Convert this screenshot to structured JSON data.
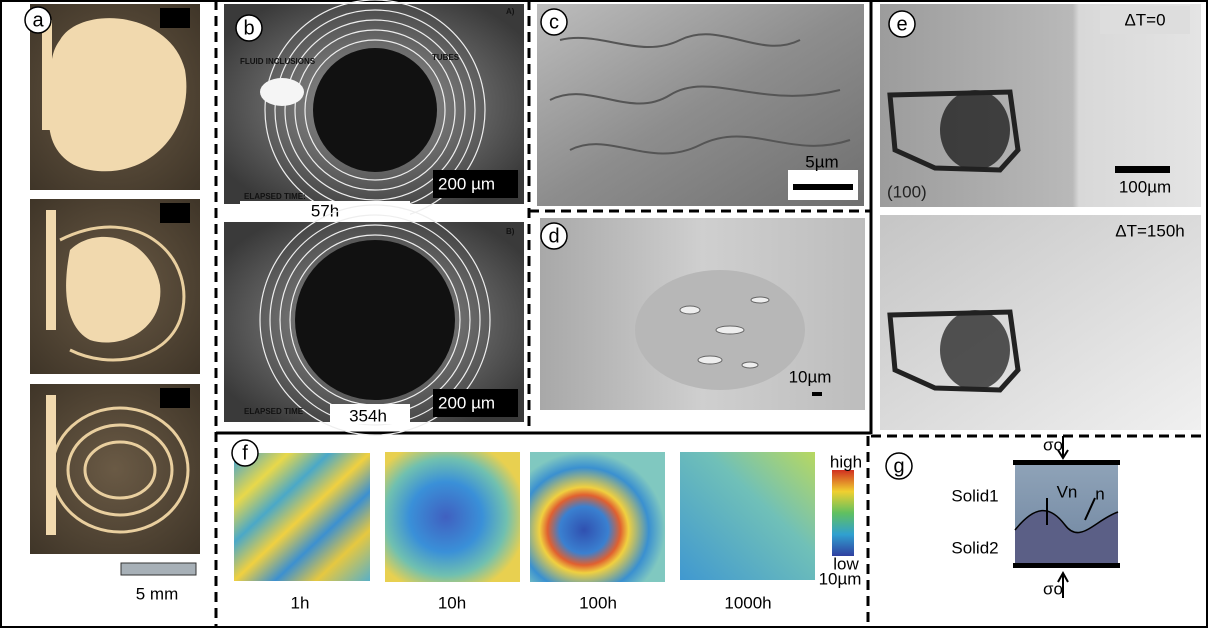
{
  "panels": {
    "a": {
      "label": "a",
      "scale_bar": "5 mm"
    },
    "b": {
      "label": "b",
      "top": {
        "corner": "A)",
        "fluid": "FLUID INCLUSIONS",
        "tubes": "TUBES",
        "elapsed": "ELAPSED TIME:",
        "time": "57h",
        "scale": "200 µm"
      },
      "bottom": {
        "corner": "B)",
        "elapsed": "ELAPSED TIME",
        "time": "354h",
        "scale": "200 µm"
      }
    },
    "c": {
      "label": "c",
      "scale": "5µm"
    },
    "d": {
      "label": "d",
      "scale": "10µm"
    },
    "e": {
      "label": "e",
      "top": {
        "delta": "ΔT=0",
        "orientation": "(100)",
        "scale": "100µm"
      },
      "bottom": {
        "delta": "ΔT=150h"
      }
    },
    "f": {
      "label": "f",
      "colorbar": {
        "high": "high",
        "low": "low"
      },
      "scale": "10µm",
      "times": [
        "1h",
        "10h",
        "100h",
        "1000h"
      ]
    },
    "g": {
      "label": "g",
      "stress_top": "σo",
      "solid1": "Solid1",
      "velocity": "Vn",
      "normal": "n",
      "solid2": "Solid2",
      "stress_bottom": "σo"
    }
  }
}
